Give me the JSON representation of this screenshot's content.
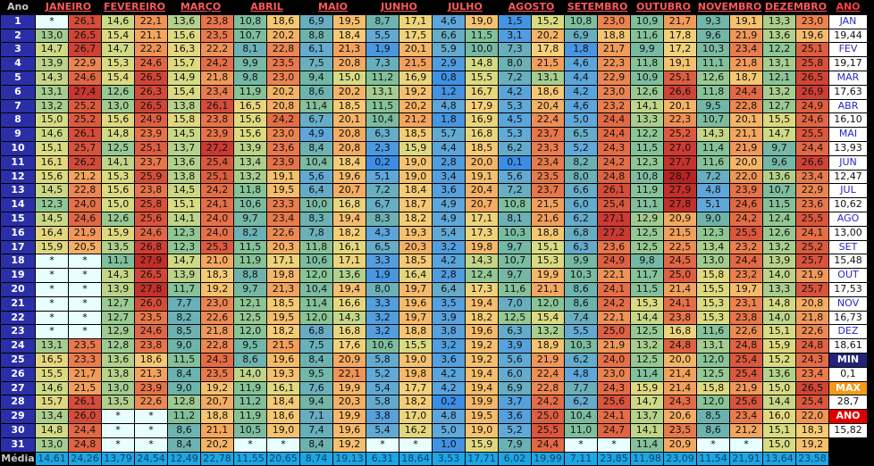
{
  "header": {
    "ano": "Ano",
    "side": "ANO"
  },
  "months": [
    "JANEIRO",
    "FEVEREIRO",
    "MARÇO",
    "ABRIL",
    "MAIO",
    "JUNHO",
    "JULHO",
    "AGOSTO",
    "SETEMBRO",
    "OUTUBRO",
    "NOVEMBRO",
    "DEZEMBRO"
  ],
  "rows": [
    [
      "*",
      "26,1",
      "14,6",
      "22,1",
      "13,6",
      "23,8",
      "10,8",
      "18,6",
      "6,9",
      "19,5",
      "8,7",
      "17,1",
      "4,6",
      "19,0",
      "1,5",
      "15,2",
      "10,8",
      "23,0",
      "10,9",
      "21,7",
      "9,3",
      "19,1",
      "13,3",
      "23,0"
    ],
    [
      "13,0",
      "26,5",
      "15,4",
      "21,1",
      "15,6",
      "23,5",
      "10,7",
      "20,2",
      "8,8",
      "18,4",
      "5,5",
      "17,5",
      "6,6",
      "11,5",
      "3,1",
      "20,2",
      "6,9",
      "18,8",
      "11,6",
      "17,8",
      "9,6",
      "21,9",
      "13,6",
      "19,6"
    ],
    [
      "14,7",
      "26,7",
      "14,7",
      "22,2",
      "16,3",
      "22,2",
      "8,1",
      "22,8",
      "6,1",
      "21,3",
      "1,9",
      "20,1",
      "5,9",
      "10,0",
      "7,3",
      "17,8",
      "1,8",
      "21,7",
      "9,9",
      "17,2",
      "10,3",
      "23,4",
      "12,2",
      "25,1"
    ],
    [
      "13,9",
      "22,9",
      "15,3",
      "24,6",
      "15,7",
      "24,2",
      "9,9",
      "23,5",
      "7,5",
      "20,8",
      "7,3",
      "21,5",
      "2,9",
      "14,8",
      "8,0",
      "21,5",
      "4,6",
      "22,3",
      "11,8",
      "19,1",
      "11,1",
      "21,8",
      "13,1",
      "25,8"
    ],
    [
      "14,3",
      "24,6",
      "15,4",
      "26,5",
      "14,9",
      "21,8",
      "9,8",
      "23,0",
      "9,4",
      "15,0",
      "11,2",
      "16,9",
      "0,8",
      "15,5",
      "7,2",
      "13,1",
      "4,4",
      "22,9",
      "10,9",
      "25,1",
      "12,6",
      "18,7",
      "12,1",
      "26,5"
    ],
    [
      "13,1",
      "27,4",
      "12,6",
      "26,3",
      "15,4",
      "23,4",
      "11,9",
      "20,2",
      "8,6",
      "20,2",
      "13,1",
      "19,2",
      "1,2",
      "16,7",
      "4,2",
      "18,6",
      "4,2",
      "23,0",
      "12,6",
      "26,6",
      "11,8",
      "24,4",
      "13,2",
      "26,9"
    ],
    [
      "13,2",
      "25,2",
      "13,0",
      "26,5",
      "13,8",
      "26,1",
      "16,5",
      "20,8",
      "11,4",
      "18,5",
      "11,5",
      "20,2",
      "4,8",
      "17,9",
      "5,3",
      "20,4",
      "4,6",
      "23,2",
      "14,1",
      "20,1",
      "9,5",
      "22,8",
      "12,7",
      "24,9"
    ],
    [
      "15,0",
      "25,2",
      "15,6",
      "24,9",
      "15,8",
      "23,8",
      "15,6",
      "24,2",
      "6,7",
      "20,1",
      "10,4",
      "21,2",
      "1,8",
      "16,9",
      "4,5",
      "22,4",
      "5,0",
      "24,4",
      "13,3",
      "22,3",
      "10,7",
      "20,1",
      "15,5",
      "24,6"
    ],
    [
      "14,6",
      "26,1",
      "14,8",
      "23,9",
      "14,5",
      "23,9",
      "15,6",
      "23,0",
      "4,9",
      "20,8",
      "6,3",
      "18,5",
      "5,7",
      "16,8",
      "5,3",
      "23,7",
      "6,5",
      "24,4",
      "12,2",
      "25,2",
      "14,3",
      "21,1",
      "14,7",
      "25,5"
    ],
    [
      "15,1",
      "25,7",
      "12,5",
      "25,1",
      "13,7",
      "27,2",
      "13,9",
      "23,6",
      "8,4",
      "20,8",
      "2,3",
      "15,9",
      "4,4",
      "18,5",
      "6,2",
      "23,3",
      "5,2",
      "24,3",
      "11,5",
      "27,0",
      "11,4",
      "21,9",
      "9,7",
      "24,4"
    ],
    [
      "16,1",
      "26,2",
      "14,1",
      "23,7",
      "13,6",
      "25,4",
      "13,4",
      "23,9",
      "10,4",
      "18,4",
      "0,2",
      "19,0",
      "2,8",
      "20,0",
      "0,1",
      "23,4",
      "8,2",
      "24,2",
      "12,3",
      "27,7",
      "11,6",
      "20,0",
      "9,6",
      "26,6"
    ],
    [
      "15,6",
      "21,2",
      "15,3",
      "25,9",
      "13,8",
      "25,1",
      "13,2",
      "19,1",
      "5,6",
      "19,6",
      "5,1",
      "19,0",
      "3,4",
      "19,1",
      "5,6",
      "23,5",
      "8,0",
      "24,8",
      "10,8",
      "28,7",
      "7,2",
      "22,0",
      "13,6",
      "23,4"
    ],
    [
      "14,5",
      "22,8",
      "15,6",
      "23,8",
      "14,5",
      "24,2",
      "11,8",
      "19,5",
      "6,4",
      "20,7",
      "7,2",
      "18,4",
      "3,6",
      "20,4",
      "7,2",
      "23,7",
      "6,6",
      "26,1",
      "11,9",
      "27,9",
      "4,8",
      "23,9",
      "10,7",
      "22,9"
    ],
    [
      "12,3",
      "24,0",
      "15,0",
      "25,8",
      "15,1",
      "24,1",
      "10,6",
      "23,3",
      "10,0",
      "16,8",
      "6,7",
      "18,7",
      "4,9",
      "20,7",
      "10,8",
      "21,5",
      "6,0",
      "25,4",
      "11,1",
      "27,8",
      "5,1",
      "24,6",
      "11,5",
      "23,6"
    ],
    [
      "14,5",
      "24,6",
      "12,6",
      "25,6",
      "14,1",
      "24,0",
      "9,7",
      "23,4",
      "8,3",
      "19,4",
      "8,3",
      "18,2",
      "4,9",
      "17,1",
      "8,1",
      "21,6",
      "6,2",
      "27,1",
      "12,9",
      "20,9",
      "9,0",
      "24,2",
      "12,4",
      "25,5"
    ],
    [
      "16,4",
      "21,9",
      "15,9",
      "24,6",
      "12,3",
      "24,0",
      "8,2",
      "22,6",
      "7,8",
      "18,2",
      "4,3",
      "19,3",
      "5,4",
      "17,3",
      "10,3",
      "18,8",
      "6,8",
      "27,2",
      "12,5",
      "21,5",
      "12,3",
      "25,5",
      "12,6",
      "24,1"
    ],
    [
      "15,9",
      "20,5",
      "13,5",
      "26,8",
      "12,3",
      "25,3",
      "11,5",
      "20,3",
      "11,8",
      "16,1",
      "6,5",
      "20,3",
      "3,2",
      "19,8",
      "9,7",
      "15,1",
      "6,3",
      "23,6",
      "12,5",
      "22,5",
      "13,4",
      "23,2",
      "13,2",
      "25,2"
    ],
    [
      "*",
      "*",
      "11,1",
      "27,9",
      "14,7",
      "21,0",
      "11,9",
      "17,1",
      "10,6",
      "17,1",
      "3,3",
      "18,5",
      "4,2",
      "14,3",
      "10,7",
      "15,3",
      "9,9",
      "24,9",
      "9,8",
      "24,5",
      "13,0",
      "24,4",
      "13,9",
      "25,7"
    ],
    [
      "*",
      "*",
      "14,3",
      "26,5",
      "13,9",
      "18,3",
      "8,8",
      "19,8",
      "12,0",
      "13,6",
      "1,9",
      "16,4",
      "2,8",
      "12,4",
      "9,7",
      "19,9",
      "10,3",
      "22,1",
      "11,7",
      "25,0",
      "15,8",
      "23,2",
      "14,0",
      "21,9"
    ],
    [
      "*",
      "*",
      "13,9",
      "27,8",
      "11,7",
      "19,2",
      "9,7",
      "21,3",
      "10,4",
      "19,4",
      "8,0",
      "19,7",
      "6,4",
      "17,3",
      "11,6",
      "21,1",
      "8,6",
      "24,1",
      "11,5",
      "21,4",
      "15,5",
      "19,7",
      "13,3",
      "25,7"
    ],
    [
      "*",
      "*",
      "12,7",
      "26,0",
      "7,7",
      "23,0",
      "12,1",
      "18,5",
      "11,4",
      "16,6",
      "3,3",
      "19,6",
      "3,5",
      "19,4",
      "7,0",
      "12,0",
      "8,6",
      "24,2",
      "15,3",
      "24,1",
      "15,3",
      "23,1",
      "14,8",
      "20,8"
    ],
    [
      "*",
      "*",
      "12,7",
      "23,5",
      "8,2",
      "22,6",
      "12,5",
      "19,5",
      "12,0",
      "14,3",
      "3,2",
      "19,7",
      "3,9",
      "18,2",
      "12,5",
      "15,4",
      "7,4",
      "22,1",
      "14,4",
      "23,8",
      "15,3",
      "23,8",
      "14,0",
      "21,8"
    ],
    [
      "*",
      "*",
      "12,9",
      "24,6",
      "8,5",
      "21,8",
      "12,0",
      "18,2",
      "6,8",
      "16,8",
      "3,2",
      "18,8",
      "3,8",
      "19,6",
      "6,3",
      "13,2",
      "5,5",
      "25,0",
      "12,5",
      "16,8",
      "11,6",
      "22,6",
      "15,1",
      "22,6"
    ],
    [
      "13,1",
      "23,5",
      "12,8",
      "23,8",
      "9,0",
      "22,8",
      "9,5",
      "21,5",
      "7,5",
      "17,6",
      "10,6",
      "15,5",
      "3,2",
      "19,2",
      "3,9",
      "18,9",
      "10,3",
      "21,9",
      "13,2",
      "24,8",
      "13,1",
      "24,8",
      "15,9",
      "24,8"
    ],
    [
      "16,5",
      "23,3",
      "13,6",
      "18,6",
      "11,5",
      "24,3",
      "8,6",
      "19,6",
      "8,4",
      "20,9",
      "5,8",
      "19,0",
      "3,6",
      "19,2",
      "5,6",
      "21,9",
      "6,2",
      "24,0",
      "12,5",
      "20,0",
      "12,0",
      "25,4",
      "15,2",
      "24,3"
    ],
    [
      "15,5",
      "21,7",
      "13,8",
      "21,3",
      "8,4",
      "23,5",
      "14,0",
      "19,3",
      "9,5",
      "22,1",
      "5,2",
      "19,8",
      "4,2",
      "19,4",
      "6,0",
      "22,4",
      "4,8",
      "23,0",
      "11,4",
      "21,4",
      "12,5",
      "25,4",
      "13,6",
      "23,4"
    ],
    [
      "14,6",
      "21,5",
      "13,0",
      "23,9",
      "9,0",
      "19,2",
      "11,9",
      "16,1",
      "7,6",
      "19,9",
      "5,4",
      "17,7",
      "4,2",
      "19,4",
      "6,9",
      "22,8",
      "7,7",
      "24,3",
      "15,9",
      "21,4",
      "15,8",
      "21,9",
      "15,0",
      "26,5"
    ],
    [
      "15,7",
      "26,1",
      "13,5",
      "22,6",
      "12,8",
      "20,7",
      "11,2",
      "18,4",
      "9,4",
      "20,3",
      "5,8",
      "18,2",
      "0,2",
      "19,9",
      "3,7",
      "24,2",
      "6,2",
      "25,6",
      "14,7",
      "24,3",
      "12,0",
      "25,6",
      "14,4",
      "25,4"
    ],
    [
      "13,4",
      "26,0",
      "*",
      "*",
      "11,2",
      "18,8",
      "11,9",
      "18,6",
      "7,1",
      "19,9",
      "3,8",
      "17,0",
      "4,8",
      "19,5",
      "3,6",
      "25,0",
      "10,4",
      "24,1",
      "13,7",
      "20,6",
      "8,5",
      "23,4",
      "16,0",
      "22,0"
    ],
    [
      "14,8",
      "24,4",
      "*",
      "*",
      "8,6",
      "21,1",
      "10,5",
      "19,0",
      "7,4",
      "19,6",
      "5,4",
      "16,2",
      "5,0",
      "19,0",
      "5,2",
      "25,5",
      "11,0",
      "24,7",
      "14,1",
      "23,5",
      "8,6",
      "21,2",
      "15,1",
      "18,3"
    ],
    [
      "13,0",
      "24,8",
      "*",
      "*",
      "8,4",
      "20,2",
      "*",
      "*",
      "8,4",
      "19,2",
      "*",
      "*",
      "1,0",
      "15,9",
      "7,9",
      "24,4",
      "*",
      "*",
      "11,4",
      "20,9",
      "*",
      "*",
      "15,0",
      "19,2"
    ]
  ],
  "averages": {
    "label": "Média",
    "values": [
      "14,61",
      "24,26",
      "13,79",
      "24,54",
      "12,49",
      "22,78",
      "11,55",
      "20,65",
      "8,74",
      "19,13",
      "6,31",
      "18,64",
      "3,53",
      "17,71",
      "6,02",
      "19,99",
      "7,11",
      "23,85",
      "11,98",
      "23,09",
      "11,54",
      "21,91",
      "13,64",
      "23,58"
    ]
  },
  "side_panel": [
    {
      "text": "JAN",
      "kind": "label"
    },
    {
      "text": "19,44",
      "kind": "value"
    },
    {
      "text": "FEV",
      "kind": "label"
    },
    {
      "text": "19,17",
      "kind": "value"
    },
    {
      "text": "MAR",
      "kind": "label"
    },
    {
      "text": "17,63",
      "kind": "value"
    },
    {
      "text": "ABR",
      "kind": "label"
    },
    {
      "text": "16,10",
      "kind": "value"
    },
    {
      "text": "MAI",
      "kind": "label"
    },
    {
      "text": "13,93",
      "kind": "value"
    },
    {
      "text": "JUN",
      "kind": "label"
    },
    {
      "text": "12,47",
      "kind": "value"
    },
    {
      "text": "JUL",
      "kind": "label"
    },
    {
      "text": "10,62",
      "kind": "value"
    },
    {
      "text": "AGO",
      "kind": "label"
    },
    {
      "text": "13,00",
      "kind": "value"
    },
    {
      "text": "SET",
      "kind": "label"
    },
    {
      "text": "15,48",
      "kind": "value"
    },
    {
      "text": "OUT",
      "kind": "label"
    },
    {
      "text": "17,53",
      "kind": "value"
    },
    {
      "text": "NOV",
      "kind": "label"
    },
    {
      "text": "16,73",
      "kind": "value"
    },
    {
      "text": "DEZ",
      "kind": "label"
    },
    {
      "text": "18,61",
      "kind": "value"
    },
    {
      "text": "MIN",
      "kind": "min"
    },
    {
      "text": "0,1",
      "kind": "value"
    },
    {
      "text": "MAX",
      "kind": "max"
    },
    {
      "text": "28,7",
      "kind": "value"
    },
    {
      "text": "ANO",
      "kind": "ano"
    },
    {
      "text": "15,82",
      "kind": "value"
    }
  ]
}
